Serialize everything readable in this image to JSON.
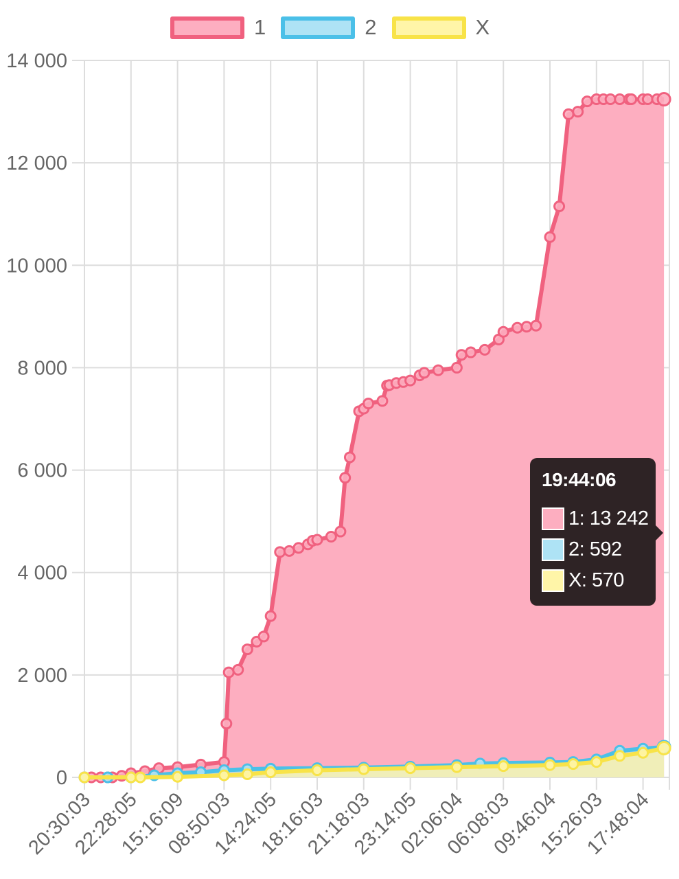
{
  "chart_data": {
    "type": "area",
    "x_ticks": [
      "20:30:03",
      "22:28:05",
      "15:16:09",
      "08:50:03",
      "14:24:05",
      "18:16:03",
      "21:18:03",
      "23:14:05",
      "02:06:04",
      "06:08:03",
      "09:46:04",
      "15:26:03",
      "17:48:04"
    ],
    "y_tick_labels": [
      "14 000",
      "12 000",
      "10 000",
      "8 000",
      "6 000",
      "4 000",
      "2 000",
      "0"
    ],
    "ylim": [
      0,
      14000
    ],
    "grid": true,
    "legend_position": "top",
    "series": [
      {
        "name": "1",
        "border_color": "#f0617f",
        "fill_color": "#fdaec0",
        "x": [
          0,
          0.15,
          0.35,
          0.5,
          0.6,
          0.8,
          1.0,
          1.3,
          1.6,
          2.0,
          2.5,
          3.0,
          3.05,
          3.1,
          3.3,
          3.5,
          3.7,
          3.85,
          4.0,
          4.2,
          4.4,
          4.6,
          4.8,
          4.9,
          5.0,
          5.3,
          5.5,
          5.6,
          5.7,
          5.9,
          6.0,
          6.1,
          6.4,
          6.5,
          6.55,
          6.7,
          6.85,
          7.0,
          7.2,
          7.3,
          7.6,
          8.0,
          8.1,
          8.3,
          8.6,
          8.9,
          9.0,
          9.3,
          9.5,
          9.7,
          10.0,
          10.2,
          10.4,
          10.6,
          10.8,
          11.0,
          11.15,
          11.3,
          11.5,
          11.7,
          11.75,
          12.0,
          12.1,
          12.3,
          12.45
        ],
        "values": [
          0,
          0,
          0,
          0,
          0,
          30,
          80,
          120,
          180,
          200,
          250,
          300,
          1050,
          2050,
          2100,
          2500,
          2650,
          2750,
          3150,
          4400,
          4420,
          4480,
          4550,
          4620,
          4640,
          4700,
          4800,
          5850,
          6250,
          7150,
          7200,
          7300,
          7350,
          7650,
          7660,
          7700,
          7720,
          7750,
          7850,
          7900,
          7950,
          8000,
          8250,
          8300,
          8350,
          8550,
          8700,
          8780,
          8800,
          8820,
          10550,
          11150,
          12950,
          13000,
          13200,
          13242,
          13242,
          13242,
          13242,
          13242,
          13242,
          13242,
          13242,
          13242,
          13242
        ]
      },
      {
        "name": "2",
        "border_color": "#4bc0e8",
        "fill_color": "#aee3f5",
        "x": [
          0,
          0.5,
          1.0,
          1.5,
          2.0,
          2.5,
          3.0,
          3.5,
          4.0,
          5.0,
          6.0,
          7.0,
          8.0,
          8.5,
          9.0,
          10.0,
          10.5,
          11.0,
          11.5,
          12.0,
          12.45
        ],
        "values": [
          0,
          0,
          0,
          40,
          80,
          100,
          140,
          160,
          170,
          180,
          190,
          210,
          240,
          270,
          280,
          290,
          300,
          350,
          520,
          560,
          592
        ]
      },
      {
        "name": "X",
        "border_color": "#f8e348",
        "fill_color": "#fff5a8",
        "x": [
          0,
          1.0,
          1.2,
          2.0,
          3.0,
          3.5,
          4.0,
          5.0,
          6.0,
          7.0,
          8.0,
          9.0,
          10.0,
          10.5,
          11.0,
          11.5,
          12.0,
          12.45
        ],
        "values": [
          0,
          0,
          0,
          10,
          40,
          60,
          100,
          140,
          160,
          180,
          200,
          220,
          240,
          260,
          300,
          420,
          480,
          570
        ]
      }
    ]
  },
  "legend": [
    {
      "label": "1",
      "border": "#f0617f",
      "fill": "#fdaec0"
    },
    {
      "label": "2",
      "border": "#4bc0e8",
      "fill": "#aee3f5"
    },
    {
      "label": "X",
      "border": "#f8e348",
      "fill": "#fff5a8"
    }
  ],
  "tooltip": {
    "title": "19:44:06",
    "rows": [
      {
        "text": "1: 13 242",
        "color": "#fdaec0"
      },
      {
        "text": "2: 592",
        "color": "#aee3f5"
      },
      {
        "text": "X: 570",
        "color": "#fff5a8"
      }
    ]
  }
}
